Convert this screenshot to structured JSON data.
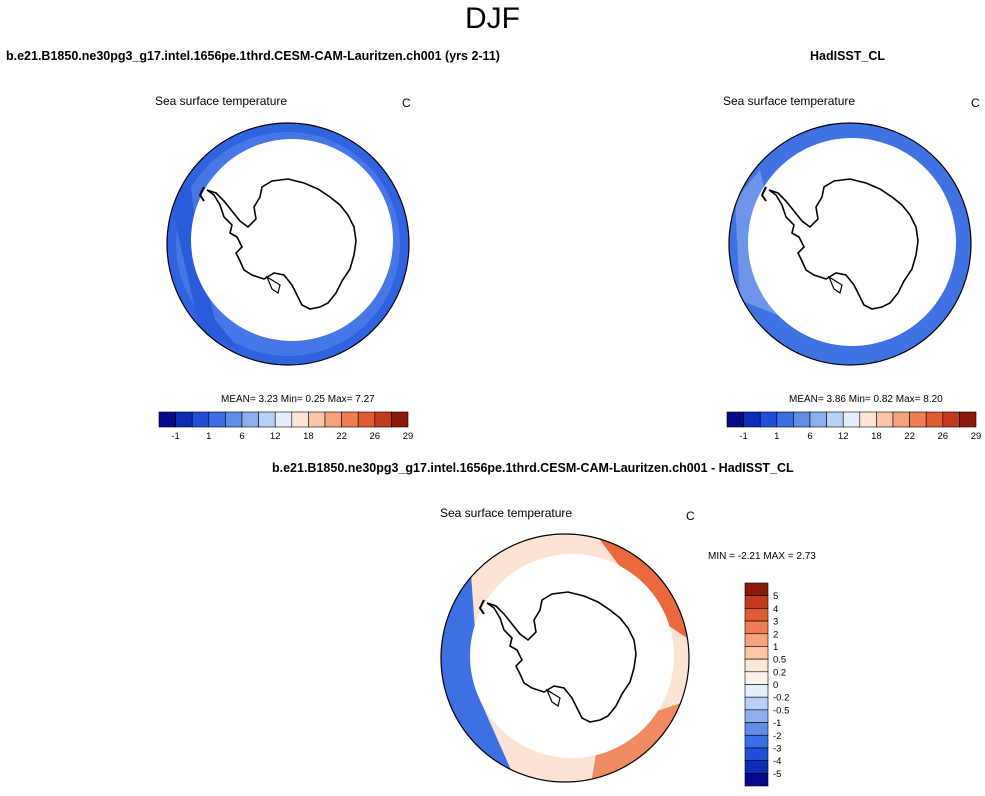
{
  "figure": {
    "title": "DJF",
    "top_left_case": "b.e21.B1850.ne30pg3_g17.intel.1656pe.1thrd.CESM-CAM-Lauritzen.ch001 (yrs 2-11)",
    "top_right_case": "HadISST_CL",
    "bottom_case": "b.e21.B1850.ne30pg3_g17.intel.1656pe.1thrd.CESM-CAM-Lauritzen.ch001 - HadISST_CL"
  },
  "chart_data": [
    {
      "type": "heatmap",
      "projection": "south-polar-stereographic",
      "title": "Sea surface temperature",
      "units": "C",
      "stats": {
        "mean_label": "MEAN=",
        "mean": "3.23",
        "min_label": "Min=",
        "min": "0.25",
        "max_label": "Max=",
        "max": "7.27"
      },
      "colorbar": {
        "orientation": "horizontal",
        "levels": [
          "-1",
          "1",
          "6",
          "12",
          "18",
          "22",
          "26",
          "29"
        ],
        "colors": [
          "#08088a",
          "#0c2eb5",
          "#1f4fd6",
          "#3a6ee4",
          "#5f8de8",
          "#8bb0ef",
          "#b7d0f6",
          "#e5eefc",
          "#fde6d6",
          "#fbc7a6",
          "#f6a27a",
          "#ef7c53",
          "#e05a32",
          "#c23b1d",
          "#8c1a0b"
        ]
      }
    },
    {
      "type": "heatmap",
      "projection": "south-polar-stereographic",
      "title": "Sea surface temperature",
      "units": "C",
      "stats": {
        "mean_label": "MEAN=",
        "mean": "3.86",
        "min_label": "Min=",
        "min": "0.82",
        "max_label": "Max=",
        "max": "8.20"
      },
      "colorbar": {
        "orientation": "horizontal",
        "levels": [
          "-1",
          "1",
          "6",
          "12",
          "18",
          "22",
          "26",
          "29"
        ],
        "colors": [
          "#08088a",
          "#0c2eb5",
          "#1f4fd6",
          "#3a6ee4",
          "#5f8de8",
          "#8bb0ef",
          "#b7d0f6",
          "#e5eefc",
          "#fde6d6",
          "#fbc7a6",
          "#f6a27a",
          "#ef7c53",
          "#e05a32",
          "#c23b1d",
          "#8c1a0b"
        ]
      }
    },
    {
      "type": "heatmap",
      "projection": "south-polar-stereographic",
      "title": "Sea surface temperature",
      "units": "C",
      "stats": {
        "min_label": "MIN =",
        "min": "-2.21",
        "max_label": "MAX =",
        "max": "2.73"
      },
      "colorbar": {
        "orientation": "vertical",
        "levels": [
          "5",
          "4",
          "3",
          "2",
          "1",
          "0.5",
          "0.2",
          "0",
          "-0.2",
          "-0.5",
          "-1",
          "-2",
          "-3",
          "-4",
          "-5"
        ],
        "colors": [
          "#8c1a0b",
          "#c23b1d",
          "#e05a32",
          "#ef7c53",
          "#f6a27a",
          "#fbc7a6",
          "#fde6d6",
          "#fef3ec",
          "#e5eefc",
          "#b7d0f6",
          "#8bb0ef",
          "#5f8de8",
          "#3a6ee4",
          "#1f4fd6",
          "#0c2eb5",
          "#08088a"
        ]
      }
    }
  ]
}
